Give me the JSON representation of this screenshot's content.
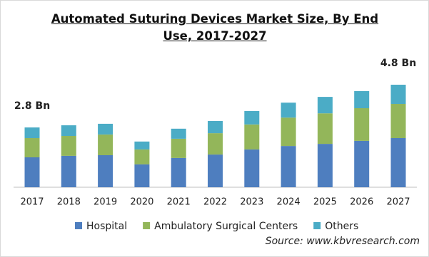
{
  "chart_data": {
    "type": "stacked_bar",
    "title": "Automated Suturing Devices Market Size, By End Use, 2017-2027",
    "source": "Source: www.kbvresearch.com",
    "categories": [
      "2017",
      "2018",
      "2019",
      "2020",
      "2021",
      "2022",
      "2023",
      "2024",
      "2025",
      "2026",
      "2027"
    ],
    "series": [
      {
        "name": "Hospital",
        "color": "#4e7ebf",
        "values": [
          1.4,
          1.47,
          1.5,
          1.07,
          1.37,
          1.53,
          1.77,
          1.93,
          2.03,
          2.17,
          2.3
        ]
      },
      {
        "name": "Ambulatory Surgical Centers",
        "color": "#93b65a",
        "values": [
          0.9,
          0.93,
          0.97,
          0.7,
          0.9,
          1.0,
          1.17,
          1.33,
          1.43,
          1.53,
          1.6
        ]
      },
      {
        "name": "Others",
        "color": "#4bacc6",
        "values": [
          0.5,
          0.5,
          0.5,
          0.37,
          0.47,
          0.57,
          0.63,
          0.7,
          0.77,
          0.8,
          0.9
        ]
      }
    ],
    "annotations": [
      {
        "label": "2.8 Bn",
        "value": 2.8,
        "category": "2017"
      },
      {
        "label": "4.8 Bn",
        "value": 4.8,
        "category": "2027"
      }
    ]
  }
}
